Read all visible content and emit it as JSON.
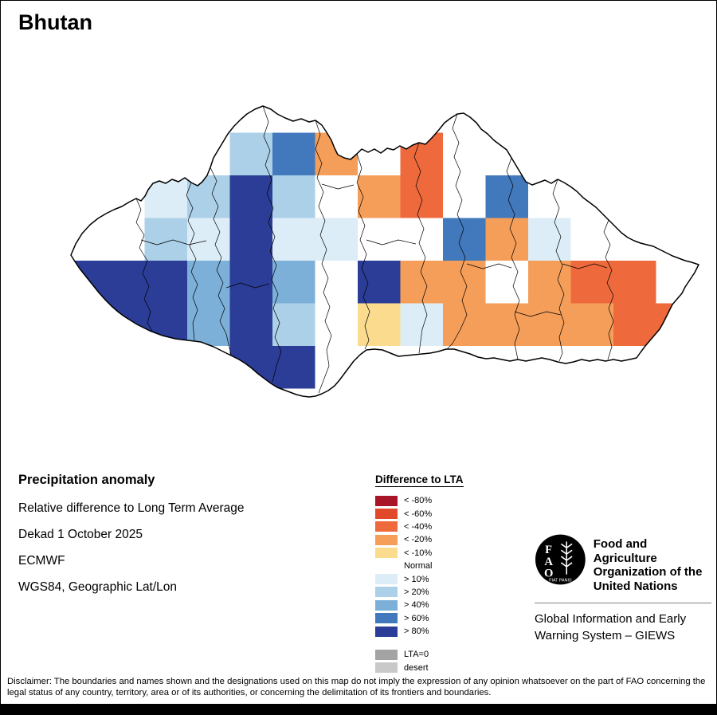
{
  "title": "Bhutan",
  "info_block": {
    "heading": "Precipitation anomaly",
    "lines": [
      "Relative difference to Long Term Average",
      "Dekad 1 October 2025",
      "ECMWF",
      "WGS84, Geographic Lat/Lon"
    ]
  },
  "legend": {
    "title": "Difference to LTA",
    "items": [
      {
        "label": "< -80%",
        "key": "m80"
      },
      {
        "label": "< -60%",
        "key": "m60"
      },
      {
        "label": "< -40%",
        "key": "m40"
      },
      {
        "label": "< -20%",
        "key": "m20"
      },
      {
        "label": "< -10%",
        "key": "m10"
      },
      {
        "label": "Normal",
        "key": "normal"
      },
      {
        "label": "> 10%",
        "key": "p10"
      },
      {
        "label": "> 20%",
        "key": "p20"
      },
      {
        "label": "> 40%",
        "key": "p40"
      },
      {
        "label": "> 60%",
        "key": "p60"
      },
      {
        "label": "> 80%",
        "key": "p80"
      }
    ],
    "extra_items": [
      {
        "label": "LTA=0",
        "key": "lta0"
      },
      {
        "label": "desert",
        "key": "desert"
      }
    ]
  },
  "fao": {
    "logo_letters": [
      "F",
      "A",
      "O"
    ],
    "motto": "FIAT PANIS",
    "org_lines": [
      "Food and Agriculture",
      "Organization of the",
      "United Nations"
    ],
    "giews_lines": [
      "Global Information and Early",
      "Warning System – GIEWS"
    ]
  },
  "disclaimer": "Disclaimer: The boundaries and names shown and the designations used on this map do not imply the expression of any opinion whatsoever on the part of FAO concerning the legal status of any country, territory, area or of its authorities, or concerning the delimitation of its frontiers and boundaries.",
  "map": {
    "grid": {
      "origin_x": 73.5,
      "origin_y": 165.5,
      "cell": 53.5
    },
    "palette": {
      "m80": "#a81529",
      "m60": "#e2492c",
      "m40": "#ee6a3c",
      "m20": "#f59e59",
      "m10": "#fbdc8e",
      "normal": "#ffffff",
      "p10": "#ddedf7",
      "p20": "#abd0e8",
      "p40": "#7cb0d8",
      "p60": "#4279bc",
      "p80": "#2b3d96",
      "lta0": "#a3a3a3",
      "desert": "#c9c9c9"
    },
    "cells": [
      {
        "c": 4,
        "r": 0,
        "k": "p20"
      },
      {
        "c": 5,
        "r": 0,
        "k": "p60"
      },
      {
        "c": 6,
        "r": 0,
        "k": "m20"
      },
      {
        "c": 8,
        "r": 0,
        "k": "m40"
      },
      {
        "c": 2,
        "r": 1,
        "k": "p10"
      },
      {
        "c": 3,
        "r": 1,
        "k": "p20"
      },
      {
        "c": 4,
        "r": 1,
        "k": "p80"
      },
      {
        "c": 5,
        "r": 1,
        "k": "p20"
      },
      {
        "c": 7,
        "r": 1,
        "k": "m20"
      },
      {
        "c": 8,
        "r": 1,
        "k": "m40"
      },
      {
        "c": 10,
        "r": 1,
        "k": "p60"
      },
      {
        "c": 2,
        "r": 2,
        "k": "p20"
      },
      {
        "c": 3,
        "r": 2,
        "k": "p10"
      },
      {
        "c": 4,
        "r": 2,
        "k": "p80"
      },
      {
        "c": 5,
        "r": 2,
        "k": "p10"
      },
      {
        "c": 6,
        "r": 2,
        "k": "p10"
      },
      {
        "c": 9,
        "r": 2,
        "k": "p60"
      },
      {
        "c": 10,
        "r": 2,
        "k": "m20"
      },
      {
        "c": 11,
        "r": 2,
        "k": "p10"
      },
      {
        "c": 0,
        "r": 3,
        "k": "p80"
      },
      {
        "c": 1,
        "r": 3,
        "k": "p80"
      },
      {
        "c": 2,
        "r": 3,
        "k": "p80"
      },
      {
        "c": 3,
        "r": 3,
        "k": "p40"
      },
      {
        "c": 4,
        "r": 3,
        "k": "p80"
      },
      {
        "c": 5,
        "r": 3,
        "k": "p40"
      },
      {
        "c": 7,
        "r": 3,
        "k": "p80"
      },
      {
        "c": 8,
        "r": 3,
        "k": "m20"
      },
      {
        "c": 9,
        "r": 3,
        "k": "m20"
      },
      {
        "c": 11,
        "r": 3,
        "k": "m20"
      },
      {
        "c": 12,
        "r": 3,
        "k": "m40"
      },
      {
        "c": 13,
        "r": 3,
        "k": "m40"
      },
      {
        "c": 0,
        "r": 4,
        "k": "p80"
      },
      {
        "c": 1,
        "r": 4,
        "k": "p80"
      },
      {
        "c": 2,
        "r": 4,
        "k": "p80"
      },
      {
        "c": 3,
        "r": 4,
        "k": "p40"
      },
      {
        "c": 4,
        "r": 4,
        "k": "p80"
      },
      {
        "c": 5,
        "r": 4,
        "k": "p20"
      },
      {
        "c": 7,
        "r": 4,
        "k": "m10"
      },
      {
        "c": 8,
        "r": 4,
        "k": "p10"
      },
      {
        "c": 9,
        "r": 4,
        "k": "m20"
      },
      {
        "c": 10,
        "r": 4,
        "k": "m20"
      },
      {
        "c": 11,
        "r": 4,
        "k": "m20"
      },
      {
        "c": 12,
        "r": 4,
        "k": "m20"
      },
      {
        "c": 13,
        "r": 4,
        "k": "m40"
      },
      {
        "c": 14,
        "r": 4,
        "k": "m40"
      },
      {
        "c": 4,
        "r": 5,
        "k": "p80"
      },
      {
        "c": 5,
        "r": 5,
        "k": "p80"
      }
    ]
  }
}
